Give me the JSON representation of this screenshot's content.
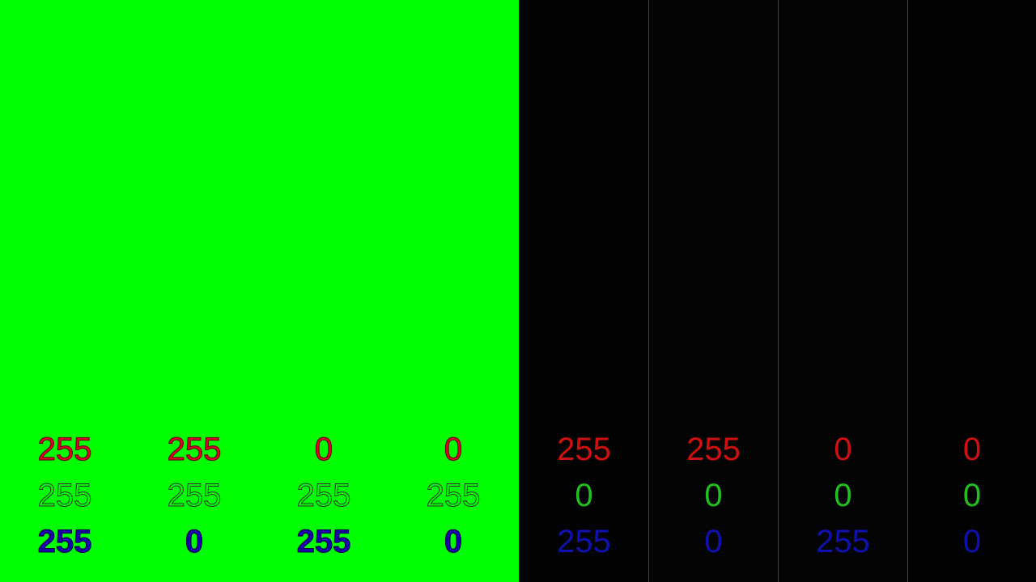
{
  "panels": {
    "left": {
      "background": "#00ff00",
      "text_colors": {
        "r": "#e8002a",
        "g": "#3a9a3a",
        "b": "#1a00aa"
      },
      "columns": [
        {
          "r": "255",
          "g": "255",
          "b": "255"
        },
        {
          "r": "255",
          "g": "255",
          "b": "0"
        },
        {
          "r": "0",
          "g": "255",
          "b": "255"
        },
        {
          "r": "0",
          "g": "255",
          "b": "0"
        }
      ]
    },
    "right": {
      "background": "#000000",
      "divider_color": "#1e5a1e",
      "column_backgrounds": [
        "#030303",
        "#040404",
        "#040404",
        "#020202"
      ],
      "text_colors": {
        "r": "#d01010",
        "g": "#20c020",
        "b": "#1010b0"
      },
      "columns": [
        {
          "r": "255",
          "g": "0",
          "b": "255"
        },
        {
          "r": "255",
          "g": "0",
          "b": "0"
        },
        {
          "r": "0",
          "g": "0",
          "b": "255"
        },
        {
          "r": "0",
          "g": "0",
          "b": "0"
        }
      ]
    }
  }
}
